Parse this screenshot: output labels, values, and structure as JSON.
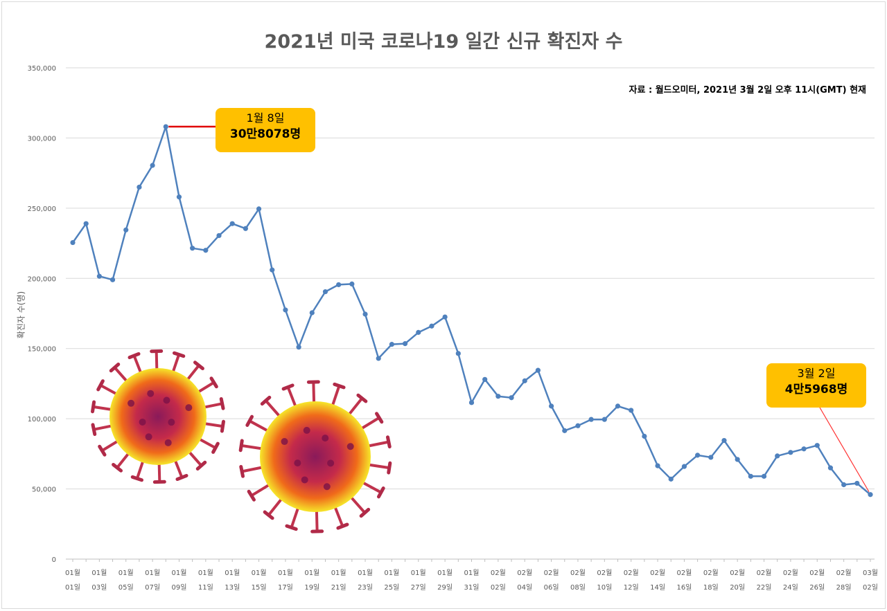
{
  "title": "2021년 미국 코로나19 일간 신규 확진자 수",
  "source": "자료 : 월드오미터, 2021년 3월 2일 오후 11시(GMT) 현재",
  "callouts": {
    "peak": {
      "line1": "1월 8일",
      "line2": "30만8078명"
    },
    "last": {
      "line1": "3월 2일",
      "line2": "4만5968명"
    }
  },
  "colors": {
    "line": "#4f81bd",
    "callout": "#ffc000",
    "leader_peak": "#e00000",
    "leader_last": "#ff3030",
    "grid": "#d9d9d9"
  },
  "decorations": [
    "coronavirus-illustration",
    "coronavirus-illustration"
  ],
  "chart_data": {
    "type": "line",
    "title": "2021년 미국 코로나19 일간 신규 확진자 수",
    "xlabel": "",
    "ylabel": "확진자 수(명)",
    "ylim": [
      0,
      350000
    ],
    "yticks": [
      "0",
      "50,000",
      "100,000",
      "150,000",
      "200,000",
      "250,000",
      "300,000",
      "350,000"
    ],
    "grid": true,
    "x": [
      "01월 01일",
      "01월 02일",
      "01월 03일",
      "01월 04일",
      "01월 05일",
      "01월 06일",
      "01월 07일",
      "01월 08일",
      "01월 09일",
      "01월 10일",
      "01월 11일",
      "01월 12일",
      "01월 13일",
      "01월 14일",
      "01월 15일",
      "01월 16일",
      "01월 17일",
      "01월 18일",
      "01월 19일",
      "01월 20일",
      "01월 21일",
      "01월 22일",
      "01월 23일",
      "01월 24일",
      "01월 25일",
      "01월 26일",
      "01월 27일",
      "01월 28일",
      "01월 29일",
      "01월 30일",
      "01월 31일",
      "02월 01일",
      "02월 02일",
      "02월 03일",
      "02월 04일",
      "02월 05일",
      "02월 06일",
      "02월 07일",
      "02월 08일",
      "02월 09일",
      "02월 10일",
      "02월 11일",
      "02월 12일",
      "02월 13일",
      "02월 14일",
      "02월 15일",
      "02월 16일",
      "02월 17일",
      "02월 18일",
      "02월 19일",
      "02월 20일",
      "02월 21일",
      "02월 22일",
      "02월 23일",
      "02월 24일",
      "02월 25일",
      "02월 26일",
      "02월 27일",
      "02월 28일",
      "03월 01일",
      "03월 02일"
    ],
    "x_tick_labels": [
      {
        "m": "01월",
        "d": "01일"
      },
      {
        "m": "01월",
        "d": "03일"
      },
      {
        "m": "01월",
        "d": "05일"
      },
      {
        "m": "01월",
        "d": "07일"
      },
      {
        "m": "01월",
        "d": "09일"
      },
      {
        "m": "01월",
        "d": "11일"
      },
      {
        "m": "01월",
        "d": "13일"
      },
      {
        "m": "01월",
        "d": "15일"
      },
      {
        "m": "01월",
        "d": "17일"
      },
      {
        "m": "01월",
        "d": "19일"
      },
      {
        "m": "01월",
        "d": "21일"
      },
      {
        "m": "01월",
        "d": "23일"
      },
      {
        "m": "01월",
        "d": "25일"
      },
      {
        "m": "01월",
        "d": "27일"
      },
      {
        "m": "01월",
        "d": "29일"
      },
      {
        "m": "01월",
        "d": "31일"
      },
      {
        "m": "02월",
        "d": "02일"
      },
      {
        "m": "02월",
        "d": "04일"
      },
      {
        "m": "02월",
        "d": "06일"
      },
      {
        "m": "02월",
        "d": "08일"
      },
      {
        "m": "02월",
        "d": "10일"
      },
      {
        "m": "02월",
        "d": "12일"
      },
      {
        "m": "02월",
        "d": "14일"
      },
      {
        "m": "02월",
        "d": "16일"
      },
      {
        "m": "02월",
        "d": "18일"
      },
      {
        "m": "02월",
        "d": "20일"
      },
      {
        "m": "02월",
        "d": "22일"
      },
      {
        "m": "02월",
        "d": "24일"
      },
      {
        "m": "02월",
        "d": "26일"
      },
      {
        "m": "02월",
        "d": "28일"
      },
      {
        "m": "03월",
        "d": "02일"
      }
    ],
    "series": [
      {
        "values": [
          225500,
          239000,
          201500,
          199000,
          234500,
          265000,
          280500,
          308078,
          258000,
          221500,
          220000,
          230500,
          239000,
          235500,
          249500,
          206000,
          177500,
          151000,
          175500,
          190500,
          195500,
          196000,
          174500,
          143000,
          153000,
          153500,
          161500,
          166000,
          172500,
          146500,
          111500,
          128000,
          116000,
          115000,
          127000,
          134500,
          109000,
          91500,
          95000,
          99500,
          99500,
          109000,
          106000,
          87500,
          66500,
          57000,
          66000,
          74000,
          72500,
          84500,
          71000,
          59000,
          59000,
          73500,
          76000,
          78500,
          81000,
          65000,
          53000,
          54000,
          45968
        ]
      }
    ]
  }
}
